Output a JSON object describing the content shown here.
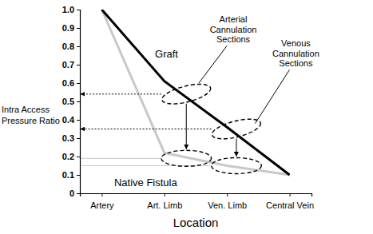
{
  "chart_data": {
    "type": "line",
    "x_label": "Location",
    "y_label": "Intra Access Pressure Ratio",
    "categories": [
      "Artery",
      "Art. Limb",
      "Ven. Limb",
      "Central Vein"
    ],
    "series": [
      {
        "name": "Graft",
        "color": "#000000",
        "values": [
          1.0,
          0.61,
          0.36,
          0.1
        ],
        "reference_values": [
          0.54,
          0.35
        ]
      },
      {
        "name": "Native Fistula",
        "color": "#c8c8c8",
        "values": [
          1.0,
          0.22,
          0.15,
          0.1
        ],
        "reference_values": [
          0.19,
          0.15
        ]
      }
    ],
    "annotations": [
      "Arterial Cannulation Sections",
      "Venous Cannulation Sections"
    ],
    "ylim": [
      0,
      1
    ],
    "yticks": [
      0,
      0.1,
      0.2,
      0.3,
      0.4,
      0.5,
      0.6,
      0.7,
      0.8,
      0.9,
      {
        "value": 1,
        "label": "1.0"
      }
    ],
    "grid": false
  }
}
